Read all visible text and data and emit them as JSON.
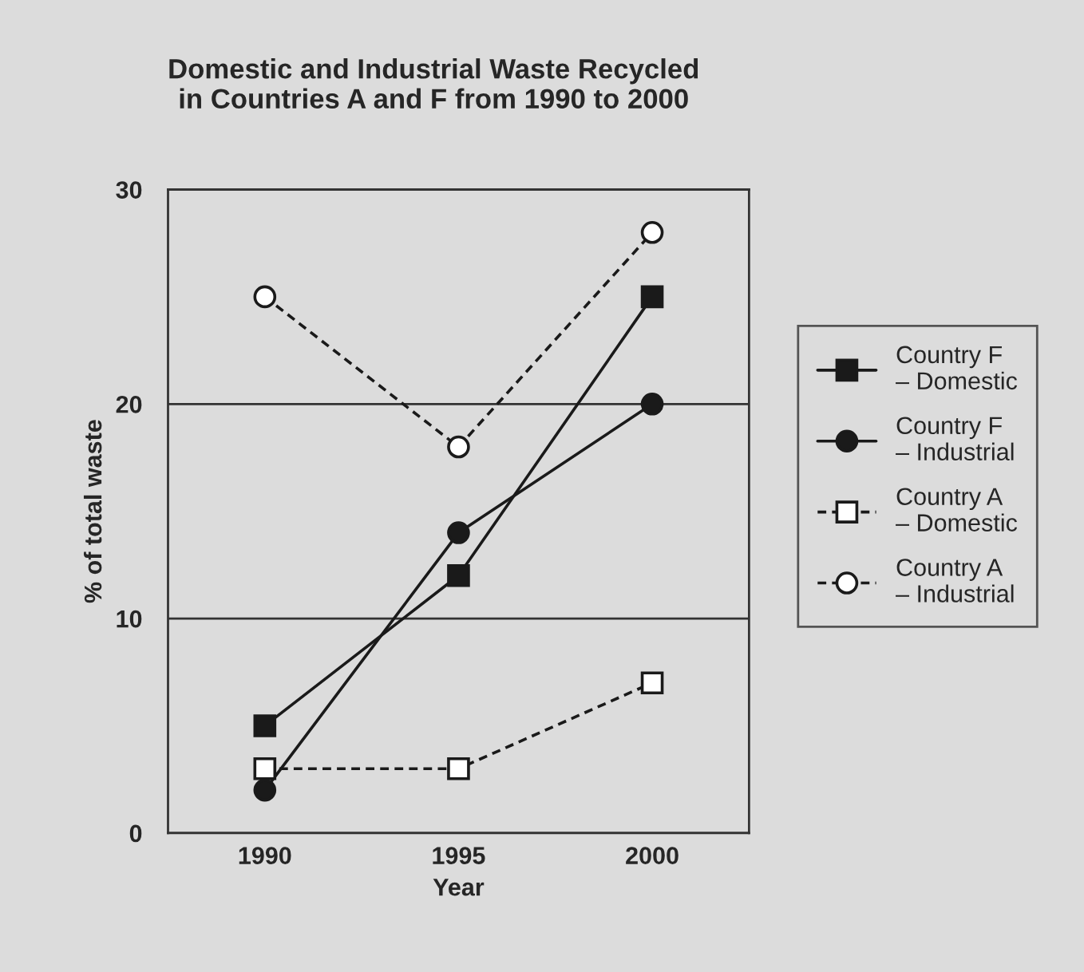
{
  "chart_data": {
    "type": "line",
    "title": "Domestic and Industrial Waste Recycled\nin Countries A and F from 1990 to 2000",
    "xlabel": "Year",
    "ylabel": "% of total waste",
    "categories": [
      "1990",
      "1995",
      "2000"
    ],
    "series": [
      {
        "name": "Country F\n– Domestic",
        "color": "#1a1a1a",
        "values": [
          5,
          12,
          25
        ],
        "marker": "square",
        "line_style": "solid"
      },
      {
        "name": "Country F\n– Industrial",
        "color": "#1a1a1a",
        "values": [
          2,
          14,
          20
        ],
        "marker": "circle",
        "line_style": "solid"
      },
      {
        "name": "Country A\n– Domestic",
        "color": "#1a1a1a",
        "values": [
          3,
          3,
          7
        ],
        "marker": "square",
        "line_style": "dashed"
      },
      {
        "name": "Country A\n– Industrial",
        "color": "#1a1a1a",
        "values": [
          25,
          18,
          28
        ],
        "marker": "circle",
        "line_style": "dashed"
      }
    ],
    "ylim": [
      0,
      30
    ],
    "yticks": [
      0,
      10,
      20,
      30
    ],
    "grid": "y",
    "legend": "right"
  }
}
